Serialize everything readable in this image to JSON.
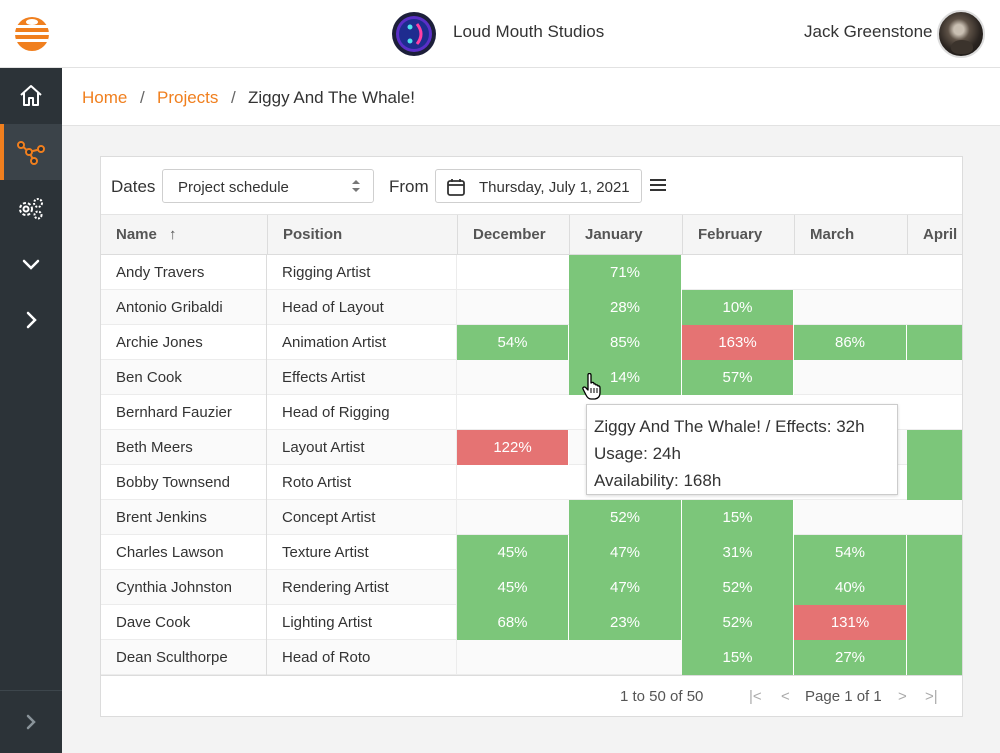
{
  "topbar": {
    "studio_name": "Loud Mouth Studios",
    "user_name": "Jack Greenstone"
  },
  "sidebar": {
    "items": [
      {
        "icon": "home-icon"
      },
      {
        "icon": "network-icon",
        "active": true
      },
      {
        "icon": "gears-icon"
      },
      {
        "icon": "chevron-down-icon"
      },
      {
        "icon": "chevron-right-icon"
      }
    ],
    "collapse_icon": "chevron-right-icon"
  },
  "breadcrumb": {
    "home": "Home",
    "sep1": "/",
    "projects": "Projects",
    "sep2": "/",
    "current": "Ziggy And The Whale!"
  },
  "toolbar": {
    "dates_label": "Dates",
    "dates_value": "Project schedule",
    "from_label": "From",
    "from_value": "Thursday, July 1, 2021"
  },
  "table": {
    "columns": [
      "Name",
      "Position",
      "December",
      "January",
      "February",
      "March",
      "April"
    ],
    "sort_indicator": "↑",
    "rows": [
      {
        "name": "Andy Travers",
        "position": "Rigging Artist",
        "usage": [
          null,
          "71%",
          null,
          null,
          null
        ]
      },
      {
        "name": "Antonio Gribaldi",
        "position": "Head of Layout",
        "usage": [
          null,
          "28%",
          "10%",
          null,
          null
        ]
      },
      {
        "name": "Archie Jones",
        "position": "Animation Artist",
        "usage": [
          "54%",
          "85%",
          "163%",
          "86%",
          ""
        ]
      },
      {
        "name": "Ben Cook",
        "position": "Effects Artist",
        "usage": [
          null,
          "14%",
          "57%",
          null,
          null
        ]
      },
      {
        "name": "Bernhard Fauzier",
        "position": "Head of Rigging",
        "usage": [
          null,
          null,
          null,
          null,
          null
        ]
      },
      {
        "name": "Beth Meers",
        "position": "Layout Artist",
        "usage": [
          "122%",
          null,
          null,
          null,
          ""
        ]
      },
      {
        "name": "Bobby Townsend",
        "position": "Roto Artist",
        "usage": [
          null,
          null,
          null,
          null,
          ""
        ]
      },
      {
        "name": "Brent Jenkins",
        "position": "Concept Artist",
        "usage": [
          null,
          "52%",
          "15%",
          null,
          null
        ]
      },
      {
        "name": "Charles Lawson",
        "position": "Texture Artist",
        "usage": [
          "45%",
          "47%",
          "31%",
          "54%",
          ""
        ]
      },
      {
        "name": "Cynthia Johnston",
        "position": "Rendering Artist",
        "usage": [
          "45%",
          "47%",
          "52%",
          "40%",
          ""
        ]
      },
      {
        "name": "Dave Cook",
        "position": "Lighting Artist",
        "usage": [
          "68%",
          "23%",
          "52%",
          "131%",
          ""
        ]
      },
      {
        "name": "Dean Sculthorpe",
        "position": "Head of Roto",
        "usage": [
          null,
          null,
          "15%",
          "27%",
          ""
        ]
      }
    ]
  },
  "footer": {
    "range": "1 to 50 of 50",
    "page": "Page 1 of 1"
  },
  "tooltip": {
    "line1": "Ziggy And The Whale! / Effects: 32h",
    "line2": "Usage: 24h",
    "line3": "Availability: 168h"
  },
  "colors": {
    "accent": "#f07f1e",
    "sidebar": "#2c3338",
    "ok": "#7cc67a",
    "over": "#e57373"
  }
}
